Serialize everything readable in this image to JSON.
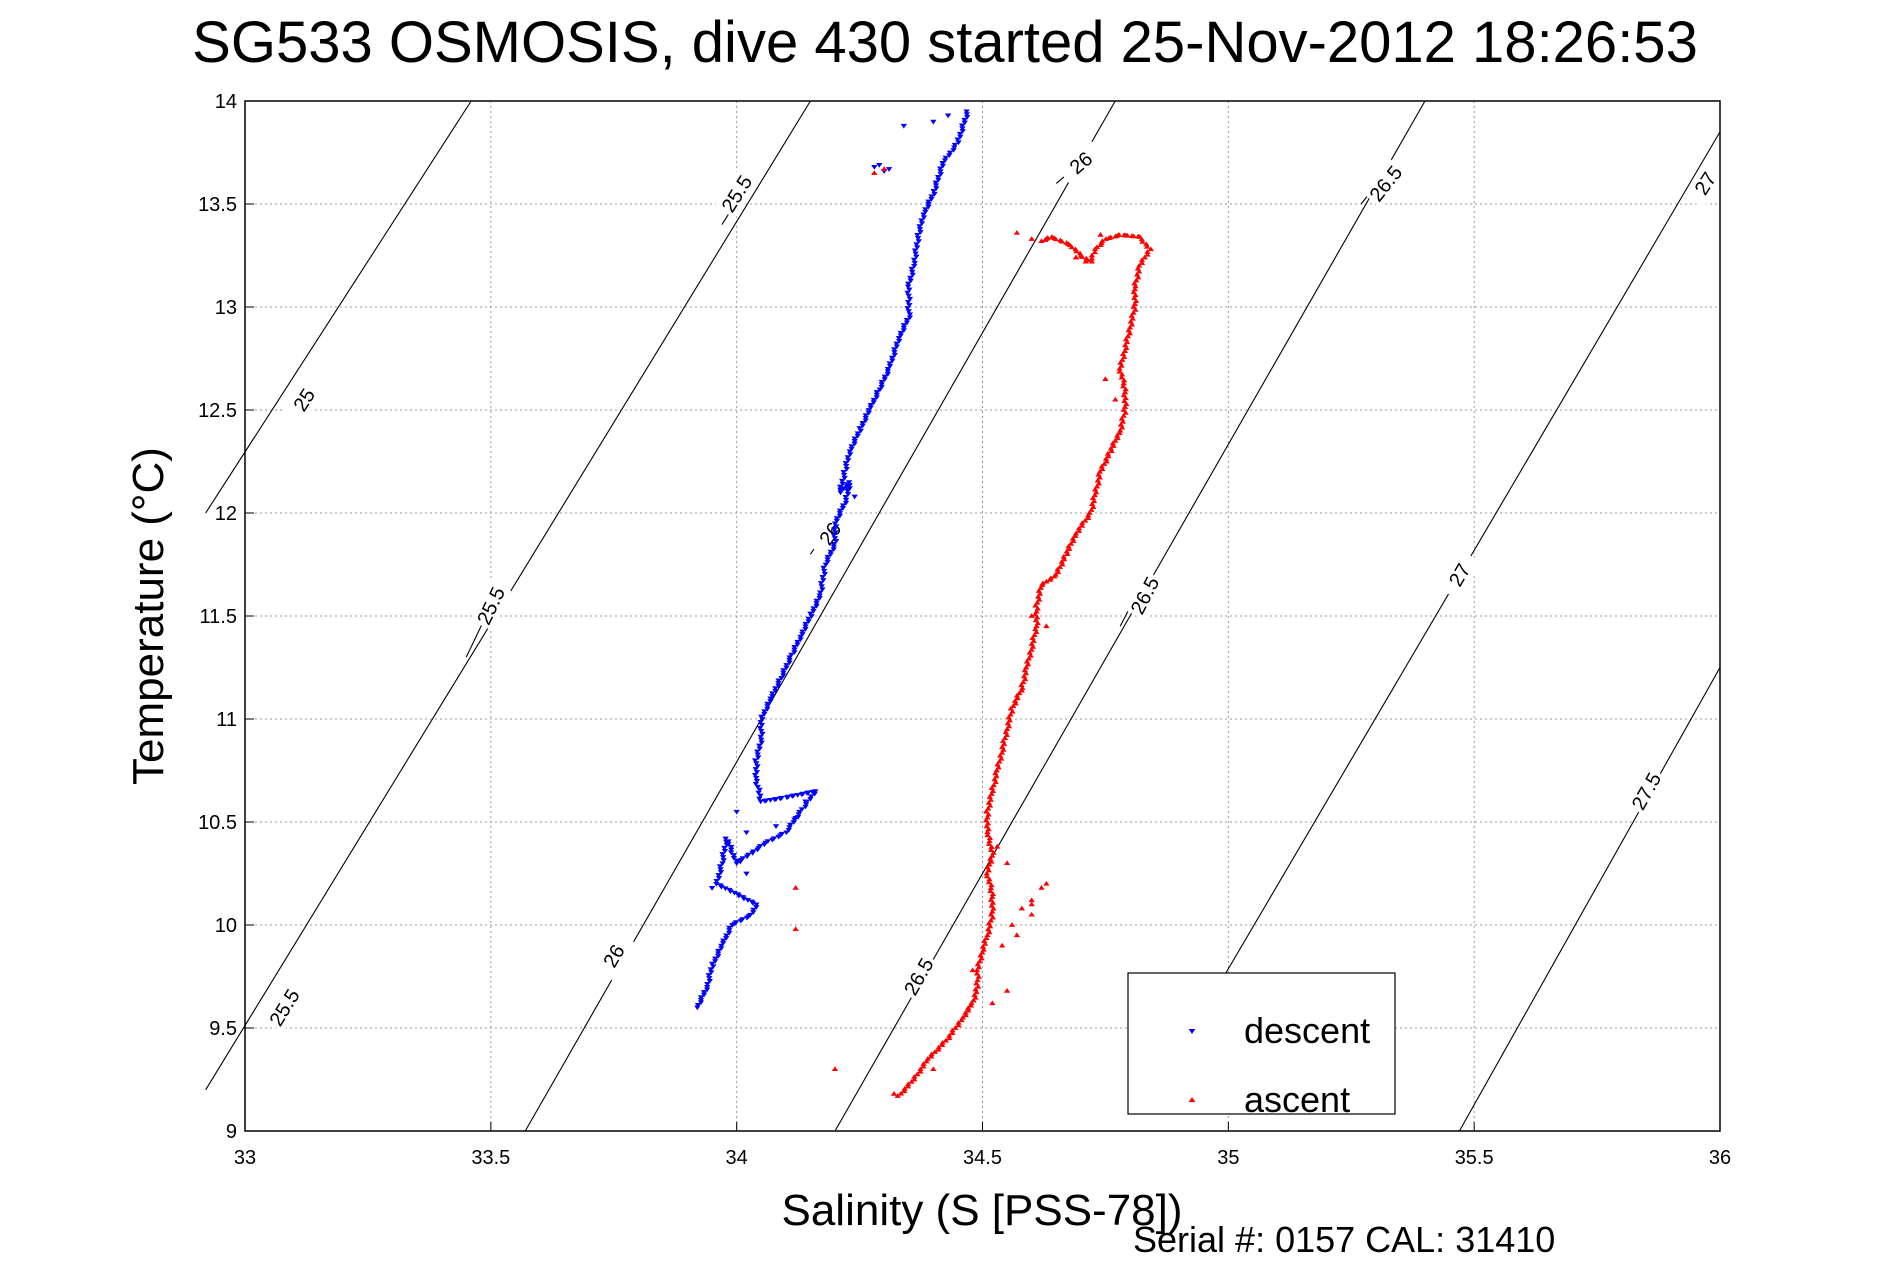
{
  "chart_data": {
    "type": "scatter",
    "title": "SG533 OSMOSIS, dive 430 started 25-Nov-2012 18:26:53",
    "xlabel": "Salinity (S [PSS-78])",
    "ylabel": "Temperature (°C)",
    "footer": "Serial #: 0157  CAL: 31410",
    "xlim": [
      33,
      36
    ],
    "ylim": [
      9,
      14
    ],
    "x_ticks": [
      33,
      33.5,
      34,
      34.5,
      35,
      35.5,
      36
    ],
    "x_tick_labels": [
      "33",
      "33.5",
      "34",
      "34.5",
      "35",
      "35.5",
      "36"
    ],
    "y_ticks": [
      9,
      9.5,
      10,
      10.5,
      11,
      11.5,
      12,
      12.5,
      13,
      13.5,
      14
    ],
    "y_tick_labels": [
      "9",
      "9.5",
      "10",
      "10.5",
      "11",
      "11.5",
      "12",
      "12.5",
      "13",
      "13.5",
      "14"
    ],
    "grid": true,
    "legend_position": "bottom-right",
    "density_contours": [
      {
        "label": "25",
        "line": [
          [
            32.92,
            12.0
          ],
          [
            33.46,
            14.0
          ]
        ],
        "label_at": [
          33.12,
          12.55
        ]
      },
      {
        "label": "25.5",
        "line": [
          [
            32.92,
            9.2
          ],
          [
            34.15,
            14.0
          ]
        ],
        "label_at": [
          33.08,
          9.6
        ]
      },
      {
        "label": "25.5",
        "line": [
          [
            33.45,
            11.3
          ],
          [
            33.49,
            11.5
          ]
        ],
        "label_at": [
          33.5,
          11.55
        ]
      },
      {
        "label": "25.5",
        "line": [
          [
            33.97,
            13.4
          ],
          [
            34.01,
            13.55
          ]
        ],
        "label_at": [
          34.0,
          13.55
        ]
      },
      {
        "label": "26",
        "line": [
          [
            33.57,
            9.0
          ],
          [
            34.77,
            14.0
          ]
        ],
        "label_at": [
          33.75,
          9.85
        ]
      },
      {
        "label": "26",
        "line": [
          [
            34.15,
            11.8
          ],
          [
            34.2,
            11.97
          ]
        ],
        "label_at": [
          34.19,
          11.9
        ]
      },
      {
        "label": "26",
        "line": [
          [
            34.65,
            13.6
          ],
          [
            34.7,
            13.7
          ]
        ],
        "label_at": [
          34.7,
          13.7
        ]
      },
      {
        "label": "26.5",
        "line": [
          [
            34.2,
            9.0
          ],
          [
            35.4,
            14.0
          ]
        ],
        "label_at": [
          34.37,
          9.75
        ]
      },
      {
        "label": "26.5",
        "line": [
          [
            34.78,
            11.45
          ],
          [
            34.83,
            11.68
          ]
        ],
        "label_at": [
          34.83,
          11.6
        ]
      },
      {
        "label": "26.5",
        "line": [
          [
            35.27,
            13.5
          ],
          [
            35.32,
            13.65
          ]
        ],
        "label_at": [
          35.32,
          13.6
        ]
      },
      {
        "label": "27",
        "line": [
          [
            34.88,
            9.3
          ],
          [
            36.0,
            13.85
          ]
        ],
        "label_at": [
          35.47,
          11.7
        ]
      },
      {
        "label": "27",
        "line": [
          [
            35.93,
            13.55
          ],
          [
            35.97,
            13.7
          ]
        ],
        "label_at": [
          35.97,
          13.6
        ]
      },
      {
        "label": "27.5",
        "line": [
          [
            35.47,
            9.0
          ],
          [
            36.0,
            11.25
          ]
        ],
        "label_at": [
          35.85,
          10.65
        ]
      }
    ],
    "series": [
      {
        "name": "descent",
        "color": "#0000ff",
        "marker": "triangle-down",
        "path": [
          [
            34.47,
            13.95
          ],
          [
            34.45,
            13.8
          ],
          [
            34.42,
            13.7
          ],
          [
            34.4,
            13.55
          ],
          [
            34.38,
            13.45
          ],
          [
            34.37,
            13.35
          ],
          [
            34.36,
            13.2
          ],
          [
            34.35,
            13.1
          ],
          [
            34.35,
            12.95
          ],
          [
            34.33,
            12.85
          ],
          [
            34.31,
            12.7
          ],
          [
            34.29,
            12.6
          ],
          [
            34.27,
            12.5
          ],
          [
            34.25,
            12.4
          ],
          [
            34.23,
            12.3
          ],
          [
            34.22,
            12.2
          ],
          [
            34.21,
            12.1
          ],
          [
            34.23,
            12.15
          ],
          [
            34.22,
            12.05
          ],
          [
            34.2,
            11.95
          ],
          [
            34.2,
            11.85
          ],
          [
            34.18,
            11.75
          ],
          [
            34.17,
            11.6
          ],
          [
            34.15,
            11.5
          ],
          [
            34.13,
            11.4
          ],
          [
            34.11,
            11.3
          ],
          [
            34.09,
            11.2
          ],
          [
            34.07,
            11.1
          ],
          [
            34.05,
            11.0
          ],
          [
            34.05,
            10.9
          ],
          [
            34.04,
            10.8
          ],
          [
            34.04,
            10.7
          ],
          [
            34.05,
            10.6
          ],
          [
            34.1,
            10.62
          ],
          [
            34.16,
            10.65
          ],
          [
            34.13,
            10.55
          ],
          [
            34.1,
            10.45
          ],
          [
            34.06,
            10.4
          ],
          [
            34.03,
            10.35
          ],
          [
            34.0,
            10.3
          ],
          [
            33.98,
            10.42
          ],
          [
            33.97,
            10.3
          ],
          [
            33.96,
            10.2
          ],
          [
            34.0,
            10.15
          ],
          [
            34.04,
            10.1
          ],
          [
            34.03,
            10.05
          ],
          [
            33.99,
            10.0
          ],
          [
            33.97,
            9.9
          ],
          [
            33.95,
            9.8
          ],
          [
            33.94,
            9.7
          ],
          [
            33.92,
            9.6
          ]
        ],
        "extra_points": [
          [
            34.28,
            13.68
          ],
          [
            34.3,
            13.66
          ],
          [
            34.31,
            13.67
          ],
          [
            34.29,
            13.69
          ],
          [
            34.34,
            13.88
          ],
          [
            34.4,
            13.9
          ],
          [
            34.43,
            13.93
          ],
          [
            34.23,
            12.12
          ],
          [
            34.24,
            12.08
          ],
          [
            34.14,
            10.6
          ],
          [
            34.12,
            10.52
          ],
          [
            34.08,
            10.48
          ],
          [
            34.02,
            10.25
          ],
          [
            33.95,
            10.18
          ],
          [
            34.0,
            10.55
          ],
          [
            34.02,
            10.45
          ]
        ]
      },
      {
        "name": "ascent",
        "color": "#ff0000",
        "marker": "triangle-up",
        "path": [
          [
            34.33,
            9.17
          ],
          [
            34.36,
            9.25
          ],
          [
            34.39,
            9.35
          ],
          [
            34.43,
            9.45
          ],
          [
            34.46,
            9.55
          ],
          [
            34.48,
            9.62
          ],
          [
            34.49,
            9.7
          ],
          [
            34.49,
            9.78
          ],
          [
            34.5,
            9.88
          ],
          [
            34.51,
            9.95
          ],
          [
            34.52,
            10.05
          ],
          [
            34.52,
            10.15
          ],
          [
            34.51,
            10.25
          ],
          [
            34.52,
            10.35
          ],
          [
            34.51,
            10.45
          ],
          [
            34.51,
            10.55
          ],
          [
            34.52,
            10.65
          ],
          [
            34.53,
            10.75
          ],
          [
            34.54,
            10.85
          ],
          [
            34.55,
            10.95
          ],
          [
            34.56,
            11.05
          ],
          [
            34.58,
            11.15
          ],
          [
            34.59,
            11.25
          ],
          [
            34.6,
            11.35
          ],
          [
            34.61,
            11.45
          ],
          [
            34.61,
            11.55
          ],
          [
            34.62,
            11.65
          ],
          [
            34.65,
            11.7
          ],
          [
            34.67,
            11.8
          ],
          [
            34.69,
            11.9
          ],
          [
            34.72,
            12.0
          ],
          [
            34.73,
            12.1
          ],
          [
            34.74,
            12.2
          ],
          [
            34.76,
            12.3
          ],
          [
            34.78,
            12.4
          ],
          [
            34.79,
            12.5
          ],
          [
            34.79,
            12.6
          ],
          [
            34.78,
            12.7
          ],
          [
            34.79,
            12.8
          ],
          [
            34.8,
            12.9
          ],
          [
            34.81,
            13.0
          ],
          [
            34.81,
            13.1
          ],
          [
            34.82,
            13.2
          ],
          [
            34.84,
            13.28
          ],
          [
            34.82,
            13.34
          ],
          [
            34.78,
            13.35
          ],
          [
            34.75,
            13.33
          ],
          [
            34.73,
            13.28
          ],
          [
            34.72,
            13.22
          ],
          [
            34.7,
            13.25
          ],
          [
            34.68,
            13.3
          ],
          [
            34.64,
            13.34
          ],
          [
            34.62,
            13.32
          ]
        ],
        "extra_points": [
          [
            34.2,
            9.3
          ],
          [
            34.32,
            9.18
          ],
          [
            34.4,
            9.3
          ],
          [
            34.52,
            9.62
          ],
          [
            34.55,
            9.68
          ],
          [
            34.56,
            10.0
          ],
          [
            34.58,
            10.08
          ],
          [
            34.6,
            10.12
          ],
          [
            34.62,
            10.18
          ],
          [
            34.6,
            10.05
          ],
          [
            34.57,
            9.95
          ],
          [
            34.54,
            9.9
          ],
          [
            34.48,
            9.78
          ],
          [
            34.55,
            10.3
          ],
          [
            34.53,
            10.38
          ],
          [
            34.12,
            9.98
          ],
          [
            34.12,
            10.18
          ],
          [
            34.63,
            10.2
          ],
          [
            34.6,
            10.1
          ],
          [
            34.28,
            13.65
          ],
          [
            34.3,
            13.67
          ],
          [
            34.69,
            13.24
          ],
          [
            34.71,
            13.22
          ],
          [
            34.74,
            13.35
          ],
          [
            34.57,
            13.36
          ],
          [
            34.6,
            13.33
          ],
          [
            34.75,
            12.65
          ],
          [
            34.77,
            12.55
          ],
          [
            34.6,
            11.5
          ],
          [
            34.63,
            11.45
          ]
        ]
      }
    ]
  }
}
